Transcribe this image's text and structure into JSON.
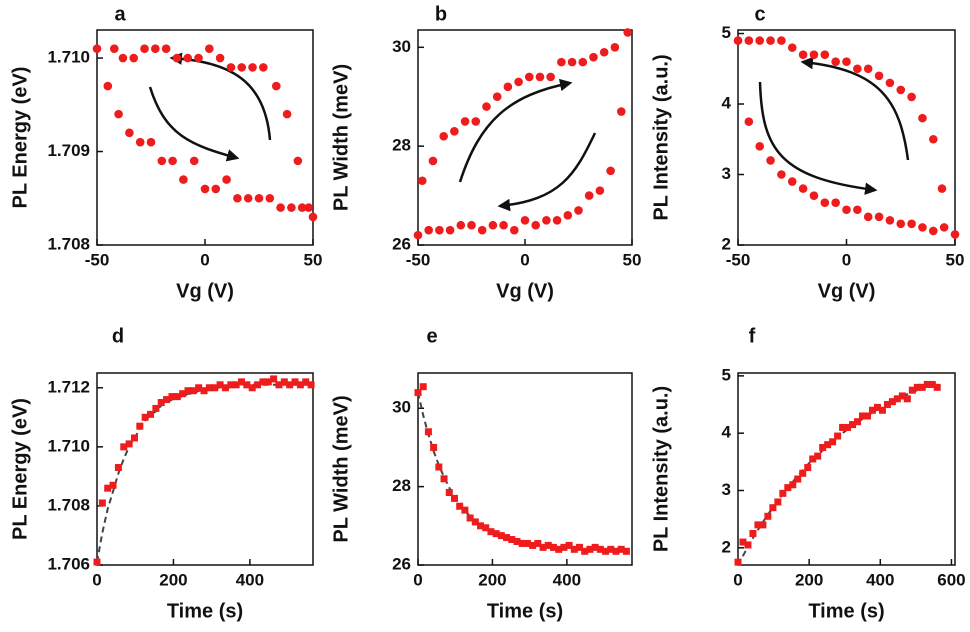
{
  "chart_data": [
    {
      "type": "scatter",
      "label": "a",
      "xlabel": "Vg (V)",
      "ylabel": "PL Energy (eV)",
      "xlim": [
        -50,
        50
      ],
      "xticks": [
        -50,
        0,
        50
      ],
      "ylim": [
        1.708,
        1.7103
      ],
      "yticks": [
        1.708,
        1.709,
        {
          "value": 1.71,
          "label": "1.710"
        }
      ],
      "series": [
        {
          "color": "#ee1c1c",
          "marker": "circle",
          "x": [
            -50,
            -42,
            -38,
            -33,
            -28,
            -23,
            -18,
            -13,
            -8,
            -3,
            2,
            7,
            12,
            17,
            22,
            27,
            33,
            38,
            43,
            48
          ],
          "values": [
            1.7101,
            1.7101,
            1.71,
            1.71,
            1.7101,
            1.7101,
            1.7101,
            1.71,
            1.71,
            1.71,
            1.7101,
            1.71,
            1.7099,
            1.7099,
            1.7099,
            1.7099,
            1.7097,
            1.7094,
            1.7089,
            1.7084
          ]
        },
        {
          "color": "#ee1c1c",
          "marker": "circle",
          "x": [
            -45,
            -40,
            -35,
            -30,
            -25,
            -20,
            -15,
            -10,
            -5,
            0,
            5,
            10,
            15,
            20,
            25,
            30,
            35,
            40,
            45,
            50
          ],
          "values": [
            1.7097,
            1.7094,
            1.7092,
            1.7091,
            1.7091,
            1.7089,
            1.7089,
            1.7087,
            1.7089,
            1.7086,
            1.7086,
            1.7087,
            1.7085,
            1.7085,
            1.7085,
            1.7085,
            1.7084,
            1.7084,
            1.7084,
            1.7083
          ]
        }
      ]
    },
    {
      "type": "scatter",
      "label": "b",
      "xlabel": "Vg (V)",
      "ylabel": "PL Width (meV)",
      "xlim": [
        -50,
        50
      ],
      "xticks": [
        -50,
        0,
        50
      ],
      "ylim": [
        26,
        30.35
      ],
      "yticks": [
        26,
        28,
        30
      ],
      "series": [
        {
          "color": "#ee1c1c",
          "marker": "circle",
          "x": [
            -48,
            -43,
            -38,
            -33,
            -28,
            -23,
            -18,
            -13,
            -8,
            -3,
            2,
            7,
            12,
            17,
            22,
            27,
            32,
            37,
            42,
            48
          ],
          "values": [
            27.3,
            27.7,
            28.2,
            28.3,
            28.5,
            28.5,
            28.8,
            29.0,
            29.2,
            29.3,
            29.4,
            29.4,
            29.4,
            29.7,
            29.7,
            29.7,
            29.8,
            29.9,
            30.0,
            30.3
          ]
        },
        {
          "color": "#ee1c1c",
          "marker": "circle",
          "x": [
            -50,
            -45,
            -40,
            -35,
            -30,
            -25,
            -20,
            -15,
            -10,
            -5,
            0,
            5,
            10,
            15,
            20,
            25,
            30,
            35,
            40,
            45
          ],
          "values": [
            26.2,
            26.3,
            26.3,
            26.3,
            26.4,
            26.4,
            26.3,
            26.4,
            26.4,
            26.3,
            26.5,
            26.4,
            26.5,
            26.5,
            26.6,
            26.7,
            27.0,
            27.1,
            27.5,
            28.7
          ]
        }
      ]
    },
    {
      "type": "scatter",
      "label": "c",
      "xlabel": "Vg (V)",
      "ylabel": "PL Intensity (a.u.)",
      "xlim": [
        -50,
        50
      ],
      "xticks": [
        -50,
        0,
        50
      ],
      "ylim": [
        2,
        5.05
      ],
      "yticks": [
        2,
        3,
        4,
        5
      ],
      "series": [
        {
          "color": "#ee1c1c",
          "marker": "circle",
          "x": [
            -50,
            -45,
            -40,
            -35,
            -30,
            -25,
            -20,
            -15,
            -10,
            -5,
            0,
            5,
            10,
            15,
            20,
            25,
            30,
            35,
            40,
            44
          ],
          "values": [
            4.9,
            4.9,
            4.9,
            4.9,
            4.9,
            4.8,
            4.7,
            4.7,
            4.7,
            4.6,
            4.6,
            4.5,
            4.5,
            4.4,
            4.3,
            4.2,
            4.1,
            3.8,
            3.5,
            2.8
          ]
        },
        {
          "color": "#ee1c1c",
          "marker": "circle",
          "x": [
            -45,
            -40,
            -35,
            -30,
            -25,
            -20,
            -15,
            -10,
            -5,
            0,
            5,
            10,
            15,
            20,
            25,
            30,
            35,
            40,
            45,
            50
          ],
          "values": [
            3.75,
            3.4,
            3.2,
            3.0,
            2.9,
            2.8,
            2.7,
            2.6,
            2.6,
            2.5,
            2.5,
            2.4,
            2.4,
            2.35,
            2.3,
            2.3,
            2.25,
            2.2,
            2.25,
            2.15
          ]
        }
      ]
    },
    {
      "type": "line",
      "label": "d",
      "xlabel": "Time (s)",
      "ylabel": "PL Energy (eV)",
      "xlim": [
        0,
        565
      ],
      "xticks": [
        0,
        200,
        400
      ],
      "ylim": [
        1.706,
        1.7125
      ],
      "yticks": [
        1.706,
        1.708,
        {
          "value": 1.71,
          "label": "1.710"
        },
        1.712
      ],
      "x": [
        0,
        14,
        28,
        42,
        56,
        70,
        84,
        98,
        112,
        126,
        140,
        154,
        168,
        182,
        196,
        210,
        224,
        238,
        252,
        266,
        280,
        294,
        308,
        322,
        336,
        350,
        364,
        378,
        392,
        406,
        420,
        434,
        448,
        462,
        476,
        490,
        504,
        518,
        532,
        546,
        560
      ],
      "series": [
        {
          "color": "#ee1c1c",
          "marker": "square",
          "values": [
            1.7061,
            1.7081,
            1.7086,
            1.7087,
            1.7093,
            1.71,
            1.7101,
            1.7103,
            1.7107,
            1.711,
            1.7111,
            1.7113,
            1.7115,
            1.7116,
            1.7117,
            1.7117,
            1.7118,
            1.7119,
            1.7119,
            1.712,
            1.7119,
            1.712,
            1.712,
            1.7121,
            1.712,
            1.7121,
            1.7121,
            1.7122,
            1.7121,
            1.712,
            1.7121,
            1.7122,
            1.7122,
            1.7123,
            1.7121,
            1.7122,
            1.7121,
            1.7122,
            1.7121,
            1.7122,
            1.7121
          ]
        },
        {
          "color": "#444444",
          "style": "dashed",
          "values": [
            1.7061,
            1.7071,
            1.7079,
            1.7085,
            1.7091,
            1.7096,
            1.71,
            1.7103,
            1.7106,
            1.7109,
            1.7111,
            1.7112,
            1.7114,
            1.7115,
            1.7116,
            1.7117,
            1.7117,
            1.7118,
            1.7118,
            1.7119,
            1.7119,
            1.712,
            1.712,
            1.712,
            1.712,
            1.712,
            1.7121,
            1.7121,
            1.7121,
            1.7121,
            1.7121,
            1.7121,
            1.7121,
            1.7121,
            1.7121,
            1.7121,
            1.7121,
            1.7121,
            1.7121,
            1.7121,
            1.7121
          ]
        }
      ]
    },
    {
      "type": "line",
      "label": "e",
      "xlabel": "Time (s)",
      "ylabel": "PL Width (meV)",
      "xlim": [
        0,
        575
      ],
      "xticks": [
        0,
        200,
        400
      ],
      "ylim": [
        26,
        30.9
      ],
      "yticks": [
        26,
        28,
        30
      ],
      "x": [
        0,
        14,
        28,
        42,
        56,
        70,
        84,
        98,
        112,
        126,
        140,
        154,
        168,
        182,
        196,
        210,
        224,
        238,
        252,
        266,
        280,
        294,
        308,
        322,
        336,
        350,
        364,
        378,
        392,
        406,
        420,
        434,
        448,
        462,
        476,
        490,
        504,
        518,
        532,
        546,
        560
      ],
      "series": [
        {
          "color": "#ee1c1c",
          "marker": "square",
          "values": [
            30.4,
            30.55,
            29.4,
            29.0,
            28.5,
            28.2,
            27.85,
            27.7,
            27.5,
            27.4,
            27.2,
            27.1,
            27.0,
            26.95,
            26.85,
            26.8,
            26.75,
            26.7,
            26.65,
            26.6,
            26.55,
            26.55,
            26.5,
            26.55,
            26.45,
            26.5,
            26.45,
            26.4,
            26.45,
            26.5,
            26.4,
            26.45,
            26.35,
            26.4,
            26.45,
            26.4,
            26.35,
            26.4,
            26.35,
            26.4,
            26.35
          ]
        },
        {
          "color": "#444444",
          "style": "dashed",
          "values": [
            30.4,
            29.82,
            29.33,
            28.91,
            28.55,
            28.24,
            27.97,
            27.75,
            27.55,
            27.39,
            27.24,
            27.12,
            27.02,
            26.93,
            26.85,
            26.79,
            26.73,
            26.68,
            26.64,
            26.61,
            26.58,
            26.55,
            26.53,
            26.51,
            26.5,
            26.48,
            26.47,
            26.46,
            26.45,
            26.44,
            26.44,
            26.43,
            26.43,
            26.42,
            26.42,
            26.42,
            26.41,
            26.41,
            26.41,
            26.41,
            26.41
          ]
        }
      ]
    },
    {
      "type": "line",
      "label": "f",
      "xlabel": "Time (s)",
      "ylabel": "PL Intensity (a.u.)",
      "xlim": [
        0,
        610
      ],
      "xticks": [
        0,
        200,
        400,
        600
      ],
      "ylim": [
        1.7,
        5.05
      ],
      "yticks": [
        2,
        3,
        4,
        5
      ],
      "x": [
        0,
        14,
        28,
        42,
        56,
        70,
        84,
        98,
        112,
        126,
        140,
        154,
        168,
        182,
        196,
        210,
        224,
        238,
        252,
        266,
        280,
        294,
        308,
        322,
        336,
        350,
        364,
        378,
        392,
        406,
        420,
        434,
        448,
        462,
        476,
        490,
        504,
        518,
        532,
        546,
        560
      ],
      "series": [
        {
          "color": "#ee1c1c",
          "marker": "square",
          "values": [
            1.75,
            2.1,
            2.05,
            2.25,
            2.4,
            2.4,
            2.55,
            2.7,
            2.8,
            2.95,
            3.05,
            3.1,
            3.2,
            3.3,
            3.4,
            3.55,
            3.6,
            3.75,
            3.8,
            3.85,
            3.95,
            4.1,
            4.1,
            4.15,
            4.2,
            4.3,
            4.3,
            4.4,
            4.45,
            4.4,
            4.5,
            4.55,
            4.6,
            4.65,
            4.6,
            4.75,
            4.8,
            4.8,
            4.85,
            4.85,
            4.8
          ]
        },
        {
          "color": "#444444",
          "style": "dashed",
          "values": [
            1.7,
            1.86,
            2.02,
            2.17,
            2.31,
            2.45,
            2.58,
            2.7,
            2.82,
            2.94,
            3.05,
            3.15,
            3.26,
            3.35,
            3.45,
            3.54,
            3.62,
            3.7,
            3.78,
            3.86,
            3.93,
            4.0,
            4.07,
            4.13,
            4.19,
            4.25,
            4.31,
            4.36,
            4.41,
            4.46,
            4.51,
            4.55,
            4.6,
            4.64,
            4.68,
            4.72,
            4.75,
            4.79,
            4.82,
            4.86,
            4.89
          ]
        }
      ]
    }
  ]
}
